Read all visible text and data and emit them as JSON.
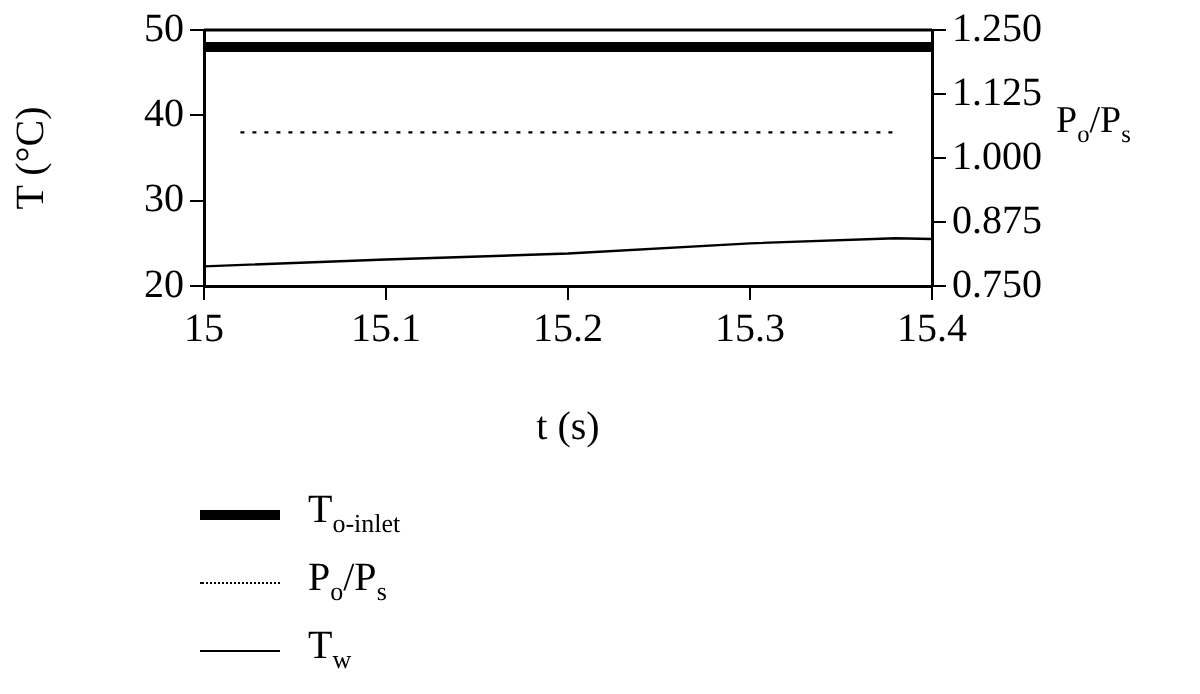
{
  "chart_data": {
    "type": "line",
    "xlabel": "t (s)",
    "ylabel": "T (°C)",
    "y2label": "P$_{o}$/P$_{s}$",
    "xlim": [
      15,
      15.4
    ],
    "xticks": [
      15,
      15.1,
      15.2,
      15.3,
      15.4
    ],
    "ylim": [
      20,
      50
    ],
    "yticks": [
      20,
      30,
      40,
      50
    ],
    "y2lim": [
      0.75,
      1.25
    ],
    "y2ticks": [
      {
        "value": 0.75,
        "label": "0.750"
      },
      {
        "value": 0.875,
        "label": "0.875"
      },
      {
        "value": 1,
        "label": "1.000"
      },
      {
        "value": 1.125,
        "label": "1.125"
      },
      {
        "value": 1.25,
        "label": "1.250"
      }
    ],
    "grid": false,
    "legend": "bottom",
    "marker": "none",
    "series": [
      {
        "name": "T$_{o-inlet}$",
        "color": "#000000",
        "line_style": "solid",
        "x": [
          15,
          15.4
        ],
        "values": [
          48,
          48
        ]
      },
      {
        "name": "P$_{o}$/P$_{s}$",
        "color": "#000000",
        "line_style": "dotted",
        "axis": "y2",
        "x": [
          15.02,
          15.38
        ],
        "values": [
          1.05,
          1.05
        ]
      },
      {
        "name": "T$_{w}$",
        "color": "#000000",
        "line_style": "solid",
        "x": [
          15,
          15.1,
          15.2,
          15.3,
          15.38,
          15.4
        ],
        "values": [
          22.3,
          23.1,
          23.8,
          25.0,
          25.6,
          25.5
        ]
      }
    ]
  }
}
